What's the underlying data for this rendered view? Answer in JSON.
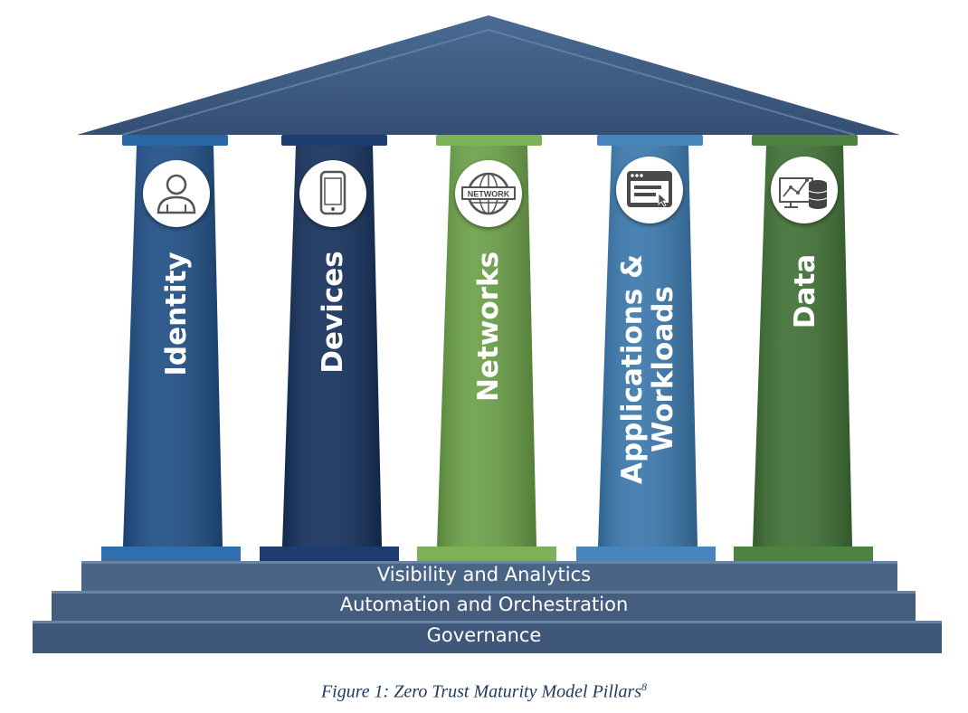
{
  "pillars": [
    {
      "label": "Identity",
      "icon": "user-icon",
      "color": "#1f4e85"
    },
    {
      "label": "Devices",
      "icon": "mobile-device-icon",
      "color": "#15305c"
    },
    {
      "label": "Networks",
      "icon": "network-globe-icon",
      "color": "#6aa047"
    },
    {
      "label": "Applications &",
      "label2": "Workloads",
      "icon": "application-window-icon",
      "color": "#3a78ad"
    },
    {
      "label": "Data",
      "icon": "data-analytics-icon",
      "color": "#3f7035"
    }
  ],
  "icon_texts": {
    "network": "NETWORK"
  },
  "steps": [
    {
      "label": "Visibility and Analytics"
    },
    {
      "label": "Automation and Orchestration"
    },
    {
      "label": "Governance"
    }
  ],
  "colors": {
    "roof": "#3e5b80",
    "steps": "#4a6485"
  },
  "caption": {
    "text": "Figure 1: Zero Trust Maturity Model Pillars",
    "footnote": "8"
  }
}
